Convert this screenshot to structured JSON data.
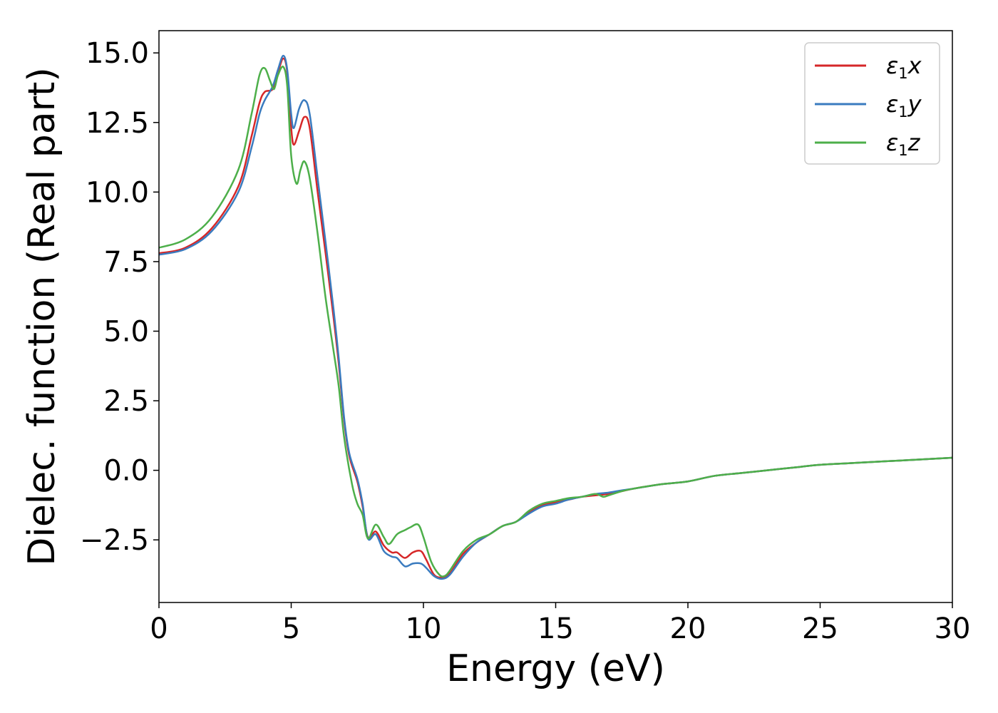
{
  "chart_data": {
    "type": "line",
    "xlabel": "Energy (eV)",
    "ylabel": "Dielec. function (Real part)",
    "xlim": [
      0,
      30
    ],
    "ylim": [
      -4.75,
      15.8
    ],
    "xticks": [
      0,
      5,
      10,
      15,
      20,
      25,
      30
    ],
    "xtick_labels": [
      "0",
      "5",
      "10",
      "15",
      "20",
      "25",
      "30"
    ],
    "yticks": [
      -2.5,
      0.0,
      2.5,
      5.0,
      7.5,
      10.0,
      12.5,
      15.0
    ],
    "ytick_labels": [
      "−2.5",
      "0.0",
      "2.5",
      "5.0",
      "7.5",
      "10.0",
      "12.5",
      "15.0"
    ],
    "grid": false,
    "legend_position": "top-right",
    "series": [
      {
        "name": "ε1x",
        "name_base": "ε",
        "name_sub": "1",
        "name_tail": "x",
        "color": "#d62728",
        "points": [
          [
            0,
            7.8
          ],
          [
            1,
            8.0
          ],
          [
            2,
            8.7
          ],
          [
            3,
            10.2
          ],
          [
            3.5,
            12.0
          ],
          [
            3.8,
            13.2
          ],
          [
            4.0,
            13.6
          ],
          [
            4.3,
            13.7
          ],
          [
            4.5,
            14.3
          ],
          [
            4.7,
            14.8
          ],
          [
            4.85,
            14.3
          ],
          [
            5.0,
            12.3
          ],
          [
            5.1,
            11.7
          ],
          [
            5.3,
            12.2
          ],
          [
            5.5,
            12.7
          ],
          [
            5.7,
            12.3
          ],
          [
            6.0,
            10.0
          ],
          [
            6.3,
            7.8
          ],
          [
            6.6,
            5.5
          ],
          [
            6.8,
            3.8
          ],
          [
            7.0,
            1.8
          ],
          [
            7.2,
            0.5
          ],
          [
            7.5,
            -0.4
          ],
          [
            7.7,
            -1.3
          ],
          [
            7.9,
            -2.4
          ],
          [
            8.2,
            -2.2
          ],
          [
            8.5,
            -2.7
          ],
          [
            8.8,
            -2.95
          ],
          [
            9.0,
            -2.95
          ],
          [
            9.3,
            -3.15
          ],
          [
            9.6,
            -2.95
          ],
          [
            9.9,
            -2.9
          ],
          [
            10.1,
            -3.2
          ],
          [
            10.4,
            -3.75
          ],
          [
            10.7,
            -3.85
          ],
          [
            11.0,
            -3.7
          ],
          [
            11.5,
            -3.0
          ],
          [
            12.0,
            -2.6
          ],
          [
            12.5,
            -2.3
          ],
          [
            13.0,
            -2.0
          ],
          [
            13.5,
            -1.85
          ],
          [
            14.0,
            -1.5
          ],
          [
            14.5,
            -1.25
          ],
          [
            15.0,
            -1.15
          ],
          [
            15.5,
            -1.05
          ],
          [
            16.0,
            -0.95
          ],
          [
            16.5,
            -0.9
          ],
          [
            17.0,
            -0.85
          ],
          [
            17.5,
            -0.75
          ],
          [
            18.0,
            -0.65
          ],
          [
            19.0,
            -0.5
          ],
          [
            20.0,
            -0.4
          ],
          [
            21.0,
            -0.2
          ],
          [
            22.0,
            -0.1
          ],
          [
            23.0,
            0.0
          ],
          [
            24.0,
            0.1
          ],
          [
            25.0,
            0.2
          ],
          [
            26.0,
            0.25
          ],
          [
            27.0,
            0.3
          ],
          [
            28.0,
            0.35
          ],
          [
            29.0,
            0.4
          ],
          [
            30.0,
            0.45
          ]
        ]
      },
      {
        "name": "ε1y",
        "name_base": "ε",
        "name_sub": "1",
        "name_tail": "y",
        "color": "#3a7bbf",
        "points": [
          [
            0,
            7.75
          ],
          [
            1,
            7.95
          ],
          [
            2,
            8.6
          ],
          [
            3,
            10.0
          ],
          [
            3.5,
            11.6
          ],
          [
            3.8,
            12.8
          ],
          [
            4.0,
            13.3
          ],
          [
            4.3,
            13.8
          ],
          [
            4.5,
            14.4
          ],
          [
            4.7,
            14.9
          ],
          [
            4.85,
            14.4
          ],
          [
            5.0,
            12.8
          ],
          [
            5.1,
            12.3
          ],
          [
            5.3,
            13.0
          ],
          [
            5.5,
            13.3
          ],
          [
            5.7,
            12.8
          ],
          [
            6.0,
            10.5
          ],
          [
            6.3,
            8.2
          ],
          [
            6.6,
            5.8
          ],
          [
            6.8,
            4.0
          ],
          [
            7.0,
            1.9
          ],
          [
            7.2,
            0.6
          ],
          [
            7.5,
            -0.3
          ],
          [
            7.7,
            -1.2
          ],
          [
            7.9,
            -2.45
          ],
          [
            8.2,
            -2.3
          ],
          [
            8.5,
            -2.9
          ],
          [
            8.8,
            -3.1
          ],
          [
            9.0,
            -3.15
          ],
          [
            9.3,
            -3.45
          ],
          [
            9.6,
            -3.35
          ],
          [
            9.9,
            -3.35
          ],
          [
            10.1,
            -3.5
          ],
          [
            10.4,
            -3.8
          ],
          [
            10.7,
            -3.9
          ],
          [
            11.0,
            -3.75
          ],
          [
            11.5,
            -3.1
          ],
          [
            12.0,
            -2.6
          ],
          [
            12.5,
            -2.3
          ],
          [
            13.0,
            -2.0
          ],
          [
            13.5,
            -1.85
          ],
          [
            14.0,
            -1.55
          ],
          [
            14.5,
            -1.3
          ],
          [
            15.0,
            -1.2
          ],
          [
            15.5,
            -1.05
          ],
          [
            16.0,
            -0.95
          ],
          [
            16.5,
            -0.85
          ],
          [
            17.0,
            -0.8
          ],
          [
            17.5,
            -0.72
          ],
          [
            18.0,
            -0.65
          ],
          [
            19.0,
            -0.5
          ],
          [
            20.0,
            -0.4
          ],
          [
            21.0,
            -0.2
          ],
          [
            22.0,
            -0.1
          ],
          [
            23.0,
            0.0
          ],
          [
            24.0,
            0.1
          ],
          [
            25.0,
            0.2
          ],
          [
            26.0,
            0.25
          ],
          [
            27.0,
            0.3
          ],
          [
            28.0,
            0.35
          ],
          [
            29.0,
            0.4
          ],
          [
            30.0,
            0.45
          ]
        ]
      },
      {
        "name": "ε1z",
        "name_base": "ε",
        "name_sub": "1",
        "name_tail": "z",
        "color": "#4daf4a",
        "points": [
          [
            0,
            8.0
          ],
          [
            1,
            8.3
          ],
          [
            2,
            9.1
          ],
          [
            3,
            10.8
          ],
          [
            3.5,
            12.8
          ],
          [
            3.8,
            14.2
          ],
          [
            4.0,
            14.45
          ],
          [
            4.2,
            14.0
          ],
          [
            4.35,
            13.7
          ],
          [
            4.5,
            14.2
          ],
          [
            4.7,
            14.5
          ],
          [
            4.85,
            13.8
          ],
          [
            5.0,
            11.3
          ],
          [
            5.2,
            10.3
          ],
          [
            5.35,
            10.8
          ],
          [
            5.5,
            11.1
          ],
          [
            5.7,
            10.5
          ],
          [
            6.0,
            8.5
          ],
          [
            6.3,
            6.2
          ],
          [
            6.6,
            4.3
          ],
          [
            6.8,
            3.0
          ],
          [
            7.0,
            1.2
          ],
          [
            7.3,
            -0.5
          ],
          [
            7.5,
            -1.2
          ],
          [
            7.7,
            -1.6
          ],
          [
            7.9,
            -2.45
          ],
          [
            8.2,
            -1.95
          ],
          [
            8.5,
            -2.4
          ],
          [
            8.7,
            -2.65
          ],
          [
            9.0,
            -2.3
          ],
          [
            9.3,
            -2.15
          ],
          [
            9.5,
            -2.05
          ],
          [
            9.8,
            -1.95
          ],
          [
            10.0,
            -2.4
          ],
          [
            10.3,
            -3.3
          ],
          [
            10.6,
            -3.75
          ],
          [
            10.8,
            -3.8
          ],
          [
            11.0,
            -3.6
          ],
          [
            11.5,
            -2.9
          ],
          [
            12.0,
            -2.5
          ],
          [
            12.5,
            -2.3
          ],
          [
            13.0,
            -2.0
          ],
          [
            13.5,
            -1.85
          ],
          [
            14.0,
            -1.45
          ],
          [
            14.5,
            -1.2
          ],
          [
            15.0,
            -1.1
          ],
          [
            15.5,
            -1.0
          ],
          [
            16.0,
            -0.95
          ],
          [
            16.5,
            -0.85
          ],
          [
            16.8,
            -0.95
          ],
          [
            17.0,
            -0.9
          ],
          [
            17.5,
            -0.75
          ],
          [
            18.0,
            -0.65
          ],
          [
            19.0,
            -0.5
          ],
          [
            20.0,
            -0.4
          ],
          [
            21.0,
            -0.2
          ],
          [
            22.0,
            -0.1
          ],
          [
            23.0,
            0.0
          ],
          [
            24.0,
            0.1
          ],
          [
            25.0,
            0.2
          ],
          [
            26.0,
            0.25
          ],
          [
            27.0,
            0.3
          ],
          [
            28.0,
            0.35
          ],
          [
            29.0,
            0.4
          ],
          [
            30.0,
            0.45
          ]
        ]
      }
    ]
  }
}
